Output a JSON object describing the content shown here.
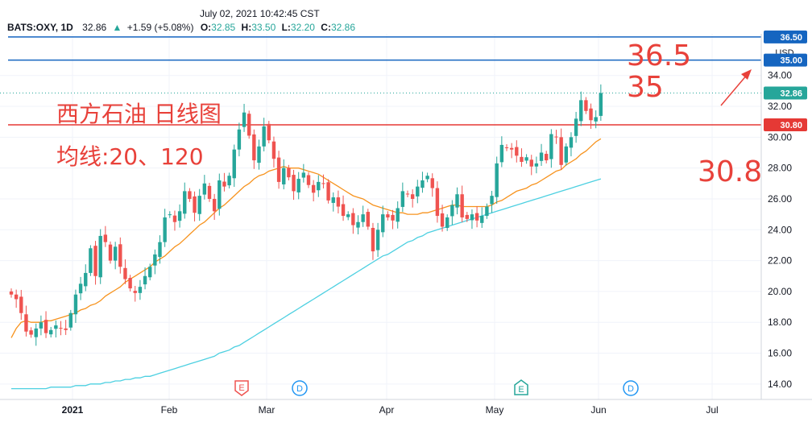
{
  "header": {
    "datetime": "July 02, 2021 10:42:45 CST",
    "symbol": "BATS:OXY, 1D",
    "last": "32.86",
    "change": "+1.59 (+5.08%)",
    "open_label": "O:",
    "open": "32.85",
    "high_label": "H:",
    "high": "33.50",
    "low_label": "L:",
    "low": "32.20",
    "close_label": "C:",
    "close": "32.86"
  },
  "currency": "USD",
  "annotations": {
    "title": "西方石油 日线图",
    "ma_label": "均线:20、120",
    "target_high": "36.5",
    "target_mid": "35",
    "support": "30.8"
  },
  "colors": {
    "up": "#26a69a",
    "down": "#ef5350",
    "ma20": "#f7931e",
    "ma120": "#4dd0e1",
    "hline_blue": "#1565c0",
    "hline_red": "#e53935",
    "annotation": "#e8413a",
    "last_price": "#26a69a"
  },
  "chart_data": {
    "type": "candlestick",
    "symbol": "BATS:OXY",
    "interval": "1D",
    "ylim": [
      13,
      36.7
    ],
    "y_ticks": [
      "14.00",
      "16.00",
      "18.00",
      "20.00",
      "22.00",
      "24.00",
      "26.00",
      "28.00",
      "30.00",
      "32.00",
      "34.00"
    ],
    "x_ticks": [
      "2021",
      "Feb",
      "Mar",
      "Apr",
      "May",
      "Jun",
      "Jul"
    ],
    "horizontal_lines": [
      {
        "value": 36.5,
        "label": "36.50",
        "color": "#1565c0"
      },
      {
        "value": 35.0,
        "label": "35.00",
        "color": "#1565c0"
      },
      {
        "value": 30.8,
        "label": "30.80",
        "color": "#e53935"
      }
    ],
    "last_price": {
      "value": 32.86,
      "label": "32.86"
    },
    "events": [
      {
        "type": "E",
        "near": "Mar",
        "color": "#ef5350"
      },
      {
        "type": "D",
        "near": "Mar",
        "color": "#2196f3"
      },
      {
        "type": "E",
        "near": "May",
        "color": "#26a69a"
      },
      {
        "type": "D",
        "near": "Jun",
        "color": "#2196f3"
      }
    ],
    "closes": [
      19.8,
      19.5,
      18.6,
      17.4,
      17.2,
      17.6,
      18.0,
      17.3,
      17.5,
      17.8,
      17.6,
      17.5,
      18.6,
      19.8,
      20.5,
      21.2,
      22.8,
      21.0,
      23.6,
      23.2,
      22.0,
      22.9,
      21.6,
      20.8,
      20.2,
      19.9,
      20.3,
      21.0,
      21.6,
      22.4,
      23.2,
      24.8,
      25.0,
      24.5,
      25.2,
      26.5,
      26.0,
      25.1,
      26.2,
      27.0,
      26.0,
      25.2,
      27.2,
      26.8,
      27.5,
      29.2,
      30.5,
      31.6,
      30.1,
      28.5,
      29.4,
      30.7,
      29.8,
      28.6,
      27.1,
      28.0,
      27.4,
      26.5,
      27.3,
      27.7,
      26.9,
      26.4,
      27.1,
      27.0,
      25.9,
      26.1,
      25.5,
      24.9,
      25.0,
      24.3,
      24.5,
      25.0,
      24.2,
      22.6,
      24.0,
      25.0,
      24.8,
      24.6,
      25.4,
      26.5,
      26.3,
      26.0,
      26.8,
      27.2,
      27.5,
      26.7,
      24.9,
      24.2,
      24.8,
      25.6,
      26.3,
      24.8,
      24.7,
      25.0,
      24.6,
      24.9,
      25.5,
      26.2,
      28.3,
      29.5,
      29.3,
      29.2,
      28.8,
      28.4,
      28.7,
      28.1,
      28.3,
      29.0,
      28.5,
      30.2,
      30.0,
      28.2,
      29.4,
      30.0,
      31.2,
      32.4,
      31.7,
      31.1,
      31.3,
      32.86
    ],
    "ma20": [
      17.0,
      17.6,
      18.0,
      18.1,
      18.0,
      18.0,
      18.0,
      18.1,
      18.1,
      18.2,
      18.3,
      18.4,
      18.5,
      18.6,
      18.8,
      18.9,
      19.1,
      19.2,
      19.4,
      19.7,
      19.9,
      20.1,
      20.3,
      20.6,
      20.8,
      21.0,
      21.2,
      21.4,
      21.6,
      21.9,
      22.1,
      22.3,
      22.6,
      22.9,
      23.1,
      23.4,
      23.7,
      24.0,
      24.3,
      24.5,
      24.8,
      25.1,
      25.4,
      25.6,
      25.9,
      26.2,
      26.5,
      26.8,
      27.0,
      27.3,
      27.5,
      27.6,
      27.8,
      27.9,
      28.0,
      28.1,
      28.0,
      28.0,
      28.0,
      27.9,
      27.8,
      27.7,
      27.6,
      27.4,
      27.2,
      27.0,
      26.8,
      26.6,
      26.4,
      26.2,
      26.1,
      26.0,
      25.8,
      25.6,
      25.5,
      25.4,
      25.3,
      25.2,
      25.1,
      25.1,
      25.0,
      25.0,
      25.0,
      25.1,
      25.1,
      25.2,
      25.3,
      25.4,
      25.5,
      25.6,
      25.6,
      25.5,
      25.5,
      25.5,
      25.5,
      25.5,
      25.5,
      25.6,
      25.8,
      25.9,
      26.1,
      26.3,
      26.5,
      26.6,
      26.7,
      26.9,
      27.0,
      27.2,
      27.4,
      27.6,
      27.8,
      27.9,
      28.2,
      28.4,
      28.6,
      28.9,
      29.1,
      29.4,
      29.7,
      29.9
    ],
    "ma120": [
      13.7,
      13.7,
      13.7,
      13.7,
      13.7,
      13.7,
      13.7,
      13.7,
      13.8,
      13.8,
      13.8,
      13.8,
      13.8,
      13.9,
      13.9,
      13.9,
      14.0,
      14.0,
      14.0,
      14.1,
      14.1,
      14.2,
      14.2,
      14.3,
      14.3,
      14.4,
      14.4,
      14.5,
      14.5,
      14.6,
      14.7,
      14.8,
      14.9,
      15.0,
      15.1,
      15.2,
      15.3,
      15.4,
      15.5,
      15.6,
      15.7,
      15.8,
      16.0,
      16.1,
      16.2,
      16.4,
      16.5,
      16.7,
      16.9,
      17.1,
      17.3,
      17.5,
      17.7,
      17.9,
      18.1,
      18.3,
      18.5,
      18.7,
      18.9,
      19.1,
      19.3,
      19.5,
      19.7,
      19.9,
      20.1,
      20.3,
      20.5,
      20.7,
      20.9,
      21.1,
      21.3,
      21.5,
      21.7,
      21.9,
      22.1,
      22.3,
      22.4,
      22.6,
      22.8,
      23.0,
      23.2,
      23.3,
      23.5,
      23.6,
      23.8,
      23.9,
      24.0,
      24.1,
      24.2,
      24.3,
      24.4,
      24.5,
      24.6,
      24.7,
      24.8,
      24.9,
      25.0,
      25.1,
      25.2,
      25.3,
      25.4,
      25.5,
      25.6,
      25.7,
      25.8,
      25.9,
      26.0,
      26.1,
      26.2,
      26.3,
      26.4,
      26.5,
      26.6,
      26.7,
      26.8,
      26.9,
      27.0,
      27.1,
      27.2,
      27.3
    ]
  }
}
